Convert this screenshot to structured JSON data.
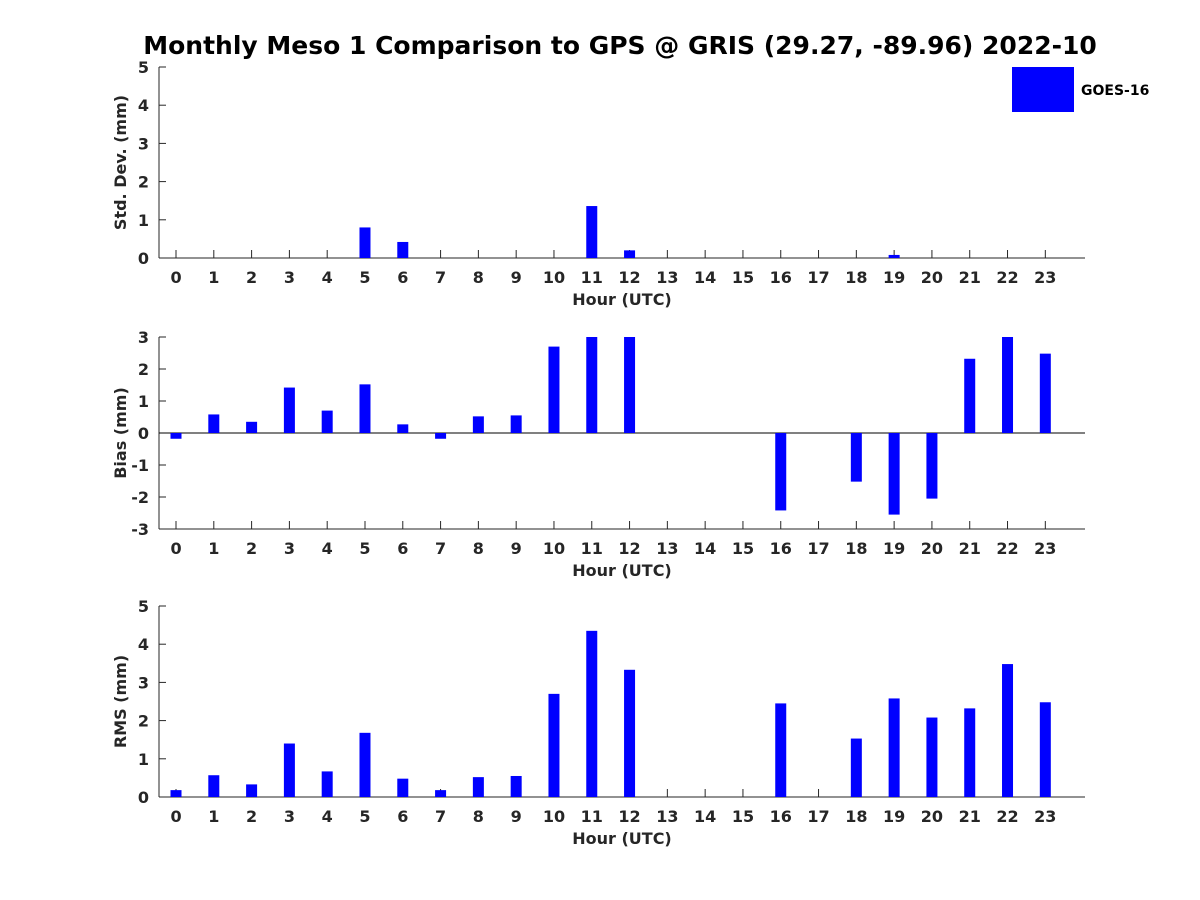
{
  "title": "Monthly Meso 1 Comparison to GPS @ GRIS (29.27, -89.96) 2022-10",
  "legend": {
    "label": "GOES-16",
    "color": "#0000ff",
    "placement": "top-right"
  },
  "chart_data": [
    {
      "type": "bar",
      "xlabel": "Hour (UTC)",
      "ylabel": "Std. Dev. (mm)",
      "ylim": [
        0,
        5
      ],
      "yticks": [
        0,
        1,
        2,
        3,
        4,
        5
      ],
      "categories": [
        "0",
        "1",
        "2",
        "3",
        "4",
        "5",
        "6",
        "7",
        "8",
        "9",
        "10",
        "11",
        "12",
        "13",
        "14",
        "15",
        "16",
        "17",
        "18",
        "19",
        "20",
        "21",
        "22",
        "23"
      ],
      "series": [
        {
          "name": "GOES-16",
          "values": [
            0,
            0,
            0,
            0,
            0,
            0.8,
            0.42,
            0,
            0,
            0,
            0,
            1.36,
            0.2,
            0,
            0,
            0,
            0,
            0,
            0,
            0.08,
            0,
            0,
            0,
            0
          ]
        }
      ]
    },
    {
      "type": "bar",
      "xlabel": "Hour (UTC)",
      "ylabel": "Bias (mm)",
      "ylim": [
        -3,
        3
      ],
      "yticks": [
        -3,
        -2,
        -1,
        0,
        1,
        2,
        3
      ],
      "categories": [
        "0",
        "1",
        "2",
        "3",
        "4",
        "5",
        "6",
        "7",
        "8",
        "9",
        "10",
        "11",
        "12",
        "13",
        "14",
        "15",
        "16",
        "17",
        "18",
        "19",
        "20",
        "21",
        "22",
        "23"
      ],
      "series": [
        {
          "name": "GOES-16",
          "values": [
            -0.18,
            0.58,
            0.35,
            1.42,
            0.7,
            1.52,
            0.27,
            -0.18,
            0.52,
            0.55,
            2.7,
            3.0,
            3.0,
            0,
            0,
            0,
            -2.42,
            0,
            -1.52,
            -2.55,
            -2.05,
            2.32,
            3.0,
            2.48
          ]
        }
      ]
    },
    {
      "type": "bar",
      "xlabel": "Hour (UTC)",
      "ylabel": "RMS (mm)",
      "ylim": [
        0,
        5
      ],
      "yticks": [
        0,
        1,
        2,
        3,
        4,
        5
      ],
      "categories": [
        "0",
        "1",
        "2",
        "3",
        "4",
        "5",
        "6",
        "7",
        "8",
        "9",
        "10",
        "11",
        "12",
        "13",
        "14",
        "15",
        "16",
        "17",
        "18",
        "19",
        "20",
        "21",
        "22",
        "23"
      ],
      "series": [
        {
          "name": "GOES-16",
          "values": [
            0.18,
            0.57,
            0.33,
            1.4,
            0.67,
            1.68,
            0.48,
            0.18,
            0.52,
            0.55,
            2.7,
            4.35,
            3.33,
            0,
            0,
            0,
            2.45,
            0,
            1.53,
            2.58,
            2.08,
            2.32,
            3.48,
            2.48
          ]
        }
      ]
    }
  ]
}
